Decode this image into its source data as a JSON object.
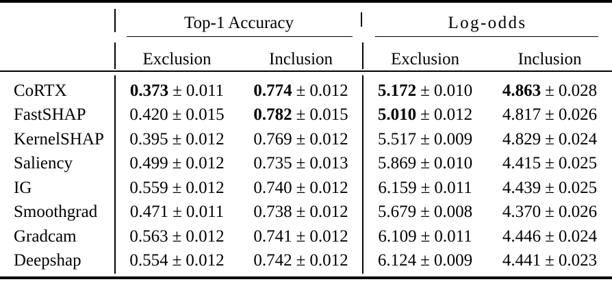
{
  "table": {
    "pm": "±",
    "group_headers": {
      "top1": "Top-1 Accuracy",
      "logodds": "Log-odds"
    },
    "sub_headers": {
      "top1_exclusion": "Exclusion",
      "top1_inclusion": "Inclusion",
      "logodds_exclusion": "Exclusion",
      "logodds_inclusion": "Inclusion"
    },
    "rows": [
      {
        "method": "CoRTX",
        "cells": [
          {
            "value": "0.373",
            "err": "0.011",
            "bold": true
          },
          {
            "value": "0.774",
            "err": "0.012",
            "bold": true
          },
          {
            "value": "5.172",
            "err": "0.010",
            "bold": true
          },
          {
            "value": "4.863",
            "err": "0.028",
            "bold": true
          }
        ]
      },
      {
        "method": "FastSHAP",
        "cells": [
          {
            "value": "0.420",
            "err": "0.015",
            "bold": false
          },
          {
            "value": "0.782",
            "err": "0.015",
            "bold": true
          },
          {
            "value": "5.010",
            "err": "0.012",
            "bold": true
          },
          {
            "value": "4.817",
            "err": "0.026",
            "bold": false
          }
        ]
      },
      {
        "method": "KernelSHAP",
        "cells": [
          {
            "value": "0.395",
            "err": "0.012",
            "bold": false
          },
          {
            "value": "0.769",
            "err": "0.012",
            "bold": false
          },
          {
            "value": "5.517",
            "err": "0.009",
            "bold": false
          },
          {
            "value": "4.829",
            "err": "0.024",
            "bold": false
          }
        ]
      },
      {
        "method": "Saliency",
        "cells": [
          {
            "value": "0.499",
            "err": "0.012",
            "bold": false
          },
          {
            "value": "0.735",
            "err": "0.013",
            "bold": false
          },
          {
            "value": "5.869",
            "err": "0.010",
            "bold": false
          },
          {
            "value": "4.415",
            "err": "0.025",
            "bold": false
          }
        ]
      },
      {
        "method": "IG",
        "cells": [
          {
            "value": "0.559",
            "err": "0.012",
            "bold": false
          },
          {
            "value": "0.740",
            "err": "0.012",
            "bold": false
          },
          {
            "value": "6.159",
            "err": "0.011",
            "bold": false
          },
          {
            "value": "4.439",
            "err": "0.025",
            "bold": false
          }
        ]
      },
      {
        "method": "Smoothgrad",
        "cells": [
          {
            "value": "0.471",
            "err": "0.011",
            "bold": false
          },
          {
            "value": "0.738",
            "err": "0.012",
            "bold": false
          },
          {
            "value": "5.679",
            "err": "0.008",
            "bold": false
          },
          {
            "value": "4.370",
            "err": "0.026",
            "bold": false
          }
        ]
      },
      {
        "method": "Gradcam",
        "cells": [
          {
            "value": "0.563",
            "err": "0.012",
            "bold": false
          },
          {
            "value": "0.741",
            "err": "0.012",
            "bold": false
          },
          {
            "value": "6.109",
            "err": "0.011",
            "bold": false
          },
          {
            "value": "4.446",
            "err": "0.024",
            "bold": false
          }
        ]
      },
      {
        "method": "Deepshap",
        "cells": [
          {
            "value": "0.554",
            "err": "0.012",
            "bold": false
          },
          {
            "value": "0.742",
            "err": "0.012",
            "bold": false
          },
          {
            "value": "6.124",
            "err": "0.009",
            "bold": false
          },
          {
            "value": "4.441",
            "err": "0.023",
            "bold": false
          }
        ]
      }
    ]
  }
}
